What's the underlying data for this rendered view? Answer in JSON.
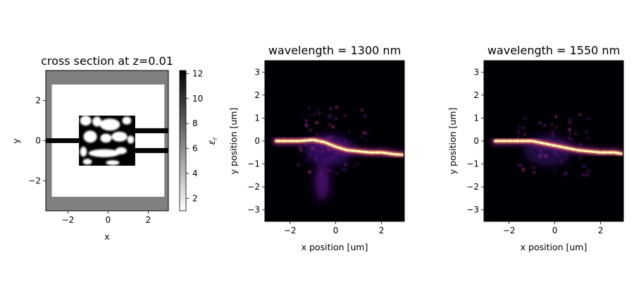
{
  "chart_data": [
    {
      "type": "heatmap",
      "title": "cross section at z=0.01",
      "xlabel": "x",
      "ylabel": "y",
      "x_ticks": [
        -2,
        0,
        2
      ],
      "y_ticks": [
        -2,
        0,
        2
      ],
      "xlim": [
        -3.1,
        3.0
      ],
      "ylim": [
        -3.5,
        3.5
      ],
      "colormap": "gray_r",
      "colorbar": {
        "label": "ε_r",
        "label_main": "ε",
        "label_sub": "r",
        "ticks": [
          2,
          4,
          6,
          8,
          10,
          12
        ],
        "range": [
          1,
          12.25
        ]
      },
      "structure": {
        "pml_region": {
          "x": [
            -3.1,
            3.0
          ],
          "y": [
            -3.5,
            3.5
          ],
          "eps": 6.0
        },
        "simulation_region": {
          "x": [
            -2.8,
            2.8
          ],
          "y": [
            -2.8,
            2.8
          ],
          "eps": 1.0
        },
        "design_region": {
          "x": [
            -1.45,
            1.35
          ],
          "y": [
            -1.25,
            1.25
          ]
        },
        "input_waveguide": {
          "x": [
            -3.1,
            -1.45
          ],
          "y": [
            -0.12,
            0.12
          ],
          "eps": 12.0
        },
        "output_waveguides": [
          {
            "x": [
              1.35,
              3.0
            ],
            "y": [
              0.37,
              0.62
            ],
            "eps": 12.0
          },
          {
            "x": [
              1.35,
              3.0
            ],
            "y": [
              -0.62,
              -0.37
            ],
            "eps": 12.0
          }
        ]
      }
    },
    {
      "type": "heatmap",
      "title": "wavelength = 1300 nm",
      "xlabel": "x position [um]",
      "ylabel": "y position [um]",
      "x_ticks": [
        -2,
        0,
        2
      ],
      "y_ticks": [
        -3,
        -2,
        -1,
        0,
        1,
        2,
        3
      ],
      "xlim": [
        -3.1,
        3.0
      ],
      "ylim": [
        -3.5,
        3.5
      ],
      "colormap": "magma",
      "beam_path": {
        "x": [
          -2.6,
          -1.6,
          -1.0,
          -0.5,
          0.0,
          0.5,
          1.0,
          1.5,
          2.0,
          2.6,
          2.9
        ],
        "y": [
          0.0,
          0.0,
          0.05,
          -0.05,
          -0.25,
          -0.4,
          -0.45,
          -0.5,
          -0.5,
          -0.58,
          -0.6
        ]
      }
    },
    {
      "type": "heatmap",
      "title": "wavelength = 1550 nm",
      "xlabel": "x position [um]",
      "ylabel": "y position [um]",
      "x_ticks": [
        -2,
        0,
        2
      ],
      "y_ticks": [
        -3,
        -2,
        -1,
        0,
        1,
        2,
        3
      ],
      "xlim": [
        -3.1,
        3.0
      ],
      "ylim": [
        -3.5,
        3.5
      ],
      "colormap": "magma",
      "beam_path": {
        "x": [
          -2.6,
          -1.6,
          -1.0,
          -0.5,
          0.0,
          0.5,
          1.0,
          1.5,
          2.0,
          2.6,
          2.9
        ],
        "y": [
          0.0,
          0.0,
          0.0,
          -0.1,
          -0.2,
          -0.3,
          -0.4,
          -0.45,
          -0.5,
          -0.5,
          -0.55
        ]
      }
    }
  ]
}
